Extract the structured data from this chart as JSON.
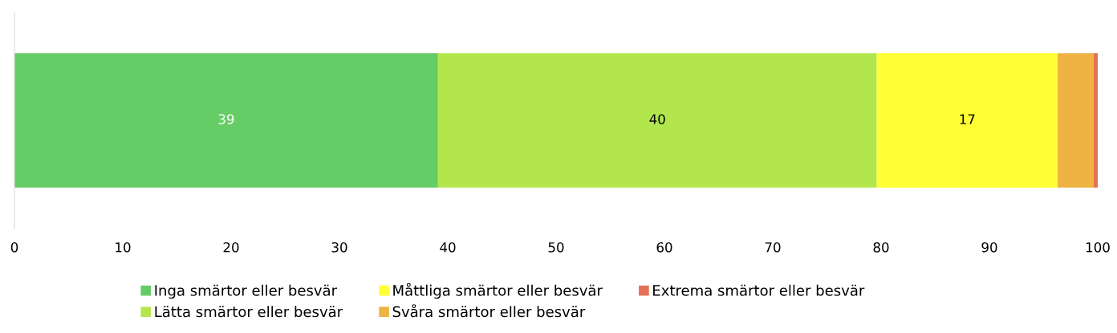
{
  "chart_data": {
    "type": "bar",
    "orientation": "horizontal",
    "stacked": true,
    "categories": [
      null
    ],
    "series": [
      {
        "name": "Inga smärtor eller besvär",
        "color": "#66cc66",
        "values": [
          39.1
        ],
        "value_labels": [
          "39"
        ]
      },
      {
        "name": "Lätta smärtor eller besvär",
        "color": "#b3e64d",
        "values": [
          40.5
        ],
        "value_labels": [
          "40"
        ]
      },
      {
        "name": "Måttliga smärtor eller besvär",
        "color": "#ffff33",
        "values": [
          16.7
        ],
        "value_labels": [
          "17"
        ]
      },
      {
        "name": "Svåra smärtor eller besvär",
        "color": "#eeb343",
        "values": [
          3.3
        ]
      },
      {
        "name": "Extrema smärtor eller besvär",
        "color": "#e57057",
        "values": [
          0.4
        ]
      }
    ],
    "xlim": [
      0,
      100
    ],
    "xticks": [
      0,
      10,
      20,
      30,
      40,
      50,
      60,
      70,
      80,
      90,
      100
    ],
    "grid": false,
    "legend": "bottom"
  }
}
